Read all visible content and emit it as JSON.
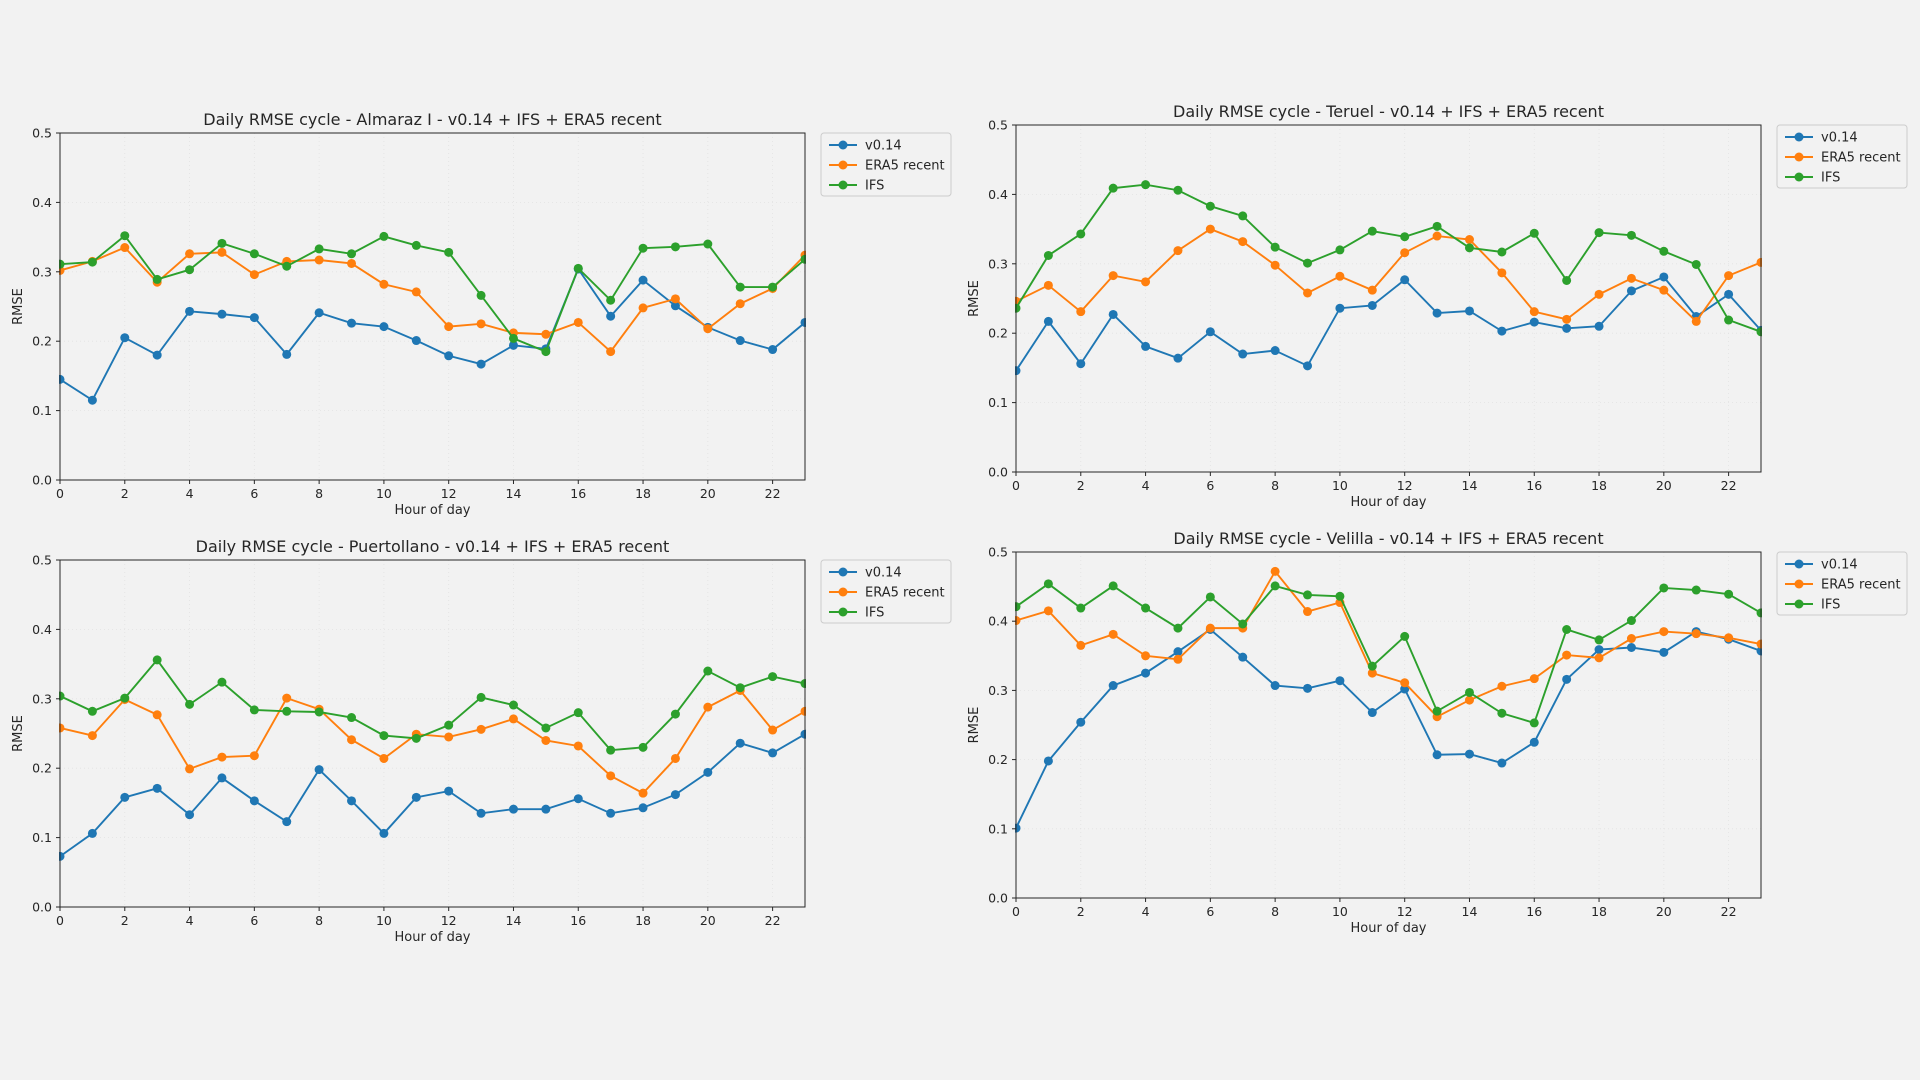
{
  "chart_data": [
    {
      "type": "line",
      "title": "Daily RMSE cycle - Almaraz I - v0.14 + IFS + ERA5 recent",
      "xlabel": "Hour of day",
      "ylabel": "RMSE",
      "xlim": [
        0,
        23
      ],
      "ylim": [
        0,
        0.5
      ],
      "xticks": [
        0,
        2,
        4,
        6,
        8,
        10,
        12,
        14,
        16,
        18,
        20,
        22
      ],
      "yticks": [
        0.0,
        0.1,
        0.2,
        0.3,
        0.4,
        0.5
      ],
      "legend_position": "outside-right-top",
      "x": [
        0,
        1,
        2,
        3,
        4,
        5,
        6,
        7,
        8,
        9,
        10,
        11,
        12,
        13,
        14,
        15,
        16,
        17,
        18,
        19,
        20,
        21,
        22,
        23
      ],
      "series": [
        {
          "name": "v0.14",
          "color": "#1f77b4",
          "values": [
            0.145,
            0.115,
            0.205,
            0.18,
            0.243,
            0.239,
            0.234,
            0.181,
            0.241,
            0.226,
            0.221,
            0.201,
            0.179,
            0.167,
            0.194,
            0.189,
            0.304,
            0.236,
            0.288,
            0.251,
            0.22,
            0.201,
            0.188,
            0.227
          ]
        },
        {
          "name": "ERA5 recent",
          "color": "#ff7f0e",
          "values": [
            0.302,
            0.315,
            0.335,
            0.285,
            0.326,
            0.328,
            0.296,
            0.315,
            0.317,
            0.312,
            0.282,
            0.271,
            0.221,
            0.225,
            0.212,
            0.21,
            0.227,
            0.185,
            0.248,
            0.261,
            0.218,
            0.254,
            0.276,
            0.324
          ]
        },
        {
          "name": "IFS",
          "color": "#2ca02c",
          "values": [
            0.311,
            0.314,
            0.352,
            0.289,
            0.303,
            0.341,
            0.326,
            0.308,
            0.333,
            0.326,
            0.351,
            0.338,
            0.328,
            0.266,
            0.204,
            0.185,
            0.305,
            0.259,
            0.334,
            0.336,
            0.34,
            0.278,
            0.278,
            0.318
          ]
        }
      ]
    },
    {
      "type": "line",
      "title": "Daily RMSE cycle - Teruel - v0.14 + IFS + ERA5 recent",
      "xlabel": "Hour of day",
      "ylabel": "RMSE",
      "xlim": [
        0,
        23
      ],
      "ylim": [
        0,
        0.5
      ],
      "xticks": [
        0,
        2,
        4,
        6,
        8,
        10,
        12,
        14,
        16,
        18,
        20,
        22
      ],
      "yticks": [
        0.0,
        0.1,
        0.2,
        0.3,
        0.4,
        0.5
      ],
      "legend_position": "outside-right-top",
      "x": [
        0,
        1,
        2,
        3,
        4,
        5,
        6,
        7,
        8,
        9,
        10,
        11,
        12,
        13,
        14,
        15,
        16,
        17,
        18,
        19,
        20,
        21,
        22,
        23
      ],
      "series": [
        {
          "name": "v0.14",
          "color": "#1f77b4",
          "values": [
            0.146,
            0.217,
            0.156,
            0.227,
            0.181,
            0.164,
            0.202,
            0.17,
            0.175,
            0.153,
            0.236,
            0.24,
            0.277,
            0.229,
            0.232,
            0.203,
            0.216,
            0.207,
            0.21,
            0.261,
            0.281,
            0.224,
            0.256,
            0.204
          ]
        },
        {
          "name": "ERA5 recent",
          "color": "#ff7f0e",
          "values": [
            0.246,
            0.269,
            0.231,
            0.283,
            0.274,
            0.319,
            0.35,
            0.332,
            0.298,
            0.258,
            0.282,
            0.262,
            0.316,
            0.34,
            0.335,
            0.287,
            0.231,
            0.22,
            0.256,
            0.279,
            0.262,
            0.217,
            0.283,
            0.302
          ]
        },
        {
          "name": "IFS",
          "color": "#2ca02c",
          "values": [
            0.236,
            0.312,
            0.343,
            0.409,
            0.414,
            0.406,
            0.383,
            0.369,
            0.324,
            0.301,
            0.32,
            0.347,
            0.339,
            0.354,
            0.323,
            0.317,
            0.344,
            0.276,
            0.345,
            0.341,
            0.318,
            0.299,
            0.219,
            0.202
          ]
        }
      ]
    },
    {
      "type": "line",
      "title": "Daily RMSE cycle - Puertollano - v0.14 + IFS + ERA5 recent",
      "xlabel": "Hour of day",
      "ylabel": "RMSE",
      "xlim": [
        0,
        23
      ],
      "ylim": [
        0,
        0.5
      ],
      "xticks": [
        0,
        2,
        4,
        6,
        8,
        10,
        12,
        14,
        16,
        18,
        20,
        22
      ],
      "yticks": [
        0.0,
        0.1,
        0.2,
        0.3,
        0.4,
        0.5
      ],
      "legend_position": "outside-right-top",
      "x": [
        0,
        1,
        2,
        3,
        4,
        5,
        6,
        7,
        8,
        9,
        10,
        11,
        12,
        13,
        14,
        15,
        16,
        17,
        18,
        19,
        20,
        21,
        22,
        23
      ],
      "series": [
        {
          "name": "v0.14",
          "color": "#1f77b4",
          "values": [
            0.073,
            0.106,
            0.158,
            0.171,
            0.133,
            0.186,
            0.153,
            0.123,
            0.198,
            0.153,
            0.106,
            0.158,
            0.167,
            0.135,
            0.141,
            0.141,
            0.156,
            0.135,
            0.143,
            0.162,
            0.194,
            0.236,
            0.222,
            0.249
          ]
        },
        {
          "name": "ERA5 recent",
          "color": "#ff7f0e",
          "values": [
            0.258,
            0.247,
            0.299,
            0.277,
            0.199,
            0.216,
            0.218,
            0.301,
            0.285,
            0.241,
            0.214,
            0.249,
            0.245,
            0.256,
            0.271,
            0.24,
            0.232,
            0.189,
            0.164,
            0.214,
            0.288,
            0.312,
            0.255,
            0.282
          ]
        },
        {
          "name": "IFS",
          "color": "#2ca02c",
          "values": [
            0.304,
            0.282,
            0.301,
            0.356,
            0.292,
            0.324,
            0.284,
            0.282,
            0.281,
            0.273,
            0.247,
            0.243,
            0.262,
            0.302,
            0.291,
            0.258,
            0.28,
            0.226,
            0.23,
            0.278,
            0.34,
            0.316,
            0.332,
            0.322
          ]
        }
      ]
    },
    {
      "type": "line",
      "title": "Daily RMSE cycle - Velilla - v0.14 + IFS + ERA5 recent",
      "xlabel": "Hour of day",
      "ylabel": "RMSE",
      "xlim": [
        0,
        23
      ],
      "ylim": [
        0,
        0.5
      ],
      "xticks": [
        0,
        2,
        4,
        6,
        8,
        10,
        12,
        14,
        16,
        18,
        20,
        22
      ],
      "yticks": [
        0.0,
        0.1,
        0.2,
        0.3,
        0.4,
        0.5
      ],
      "legend_position": "outside-right-top",
      "x": [
        0,
        1,
        2,
        3,
        4,
        5,
        6,
        7,
        8,
        9,
        10,
        11,
        12,
        13,
        14,
        15,
        16,
        17,
        18,
        19,
        20,
        21,
        22,
        23
      ],
      "series": [
        {
          "name": "v0.14",
          "color": "#1f77b4",
          "values": [
            0.101,
            0.198,
            0.254,
            0.307,
            0.325,
            0.356,
            0.388,
            0.348,
            0.307,
            0.303,
            0.314,
            0.268,
            0.302,
            0.207,
            0.208,
            0.195,
            0.225,
            0.316,
            0.359,
            0.362,
            0.355,
            0.385,
            0.374,
            0.357
          ]
        },
        {
          "name": "ERA5 recent",
          "color": "#ff7f0e",
          "values": [
            0.401,
            0.415,
            0.365,
            0.381,
            0.35,
            0.345,
            0.39,
            0.39,
            0.472,
            0.414,
            0.427,
            0.325,
            0.311,
            0.262,
            0.286,
            0.306,
            0.317,
            0.351,
            0.347,
            0.375,
            0.385,
            0.382,
            0.376,
            0.367
          ]
        },
        {
          "name": "IFS",
          "color": "#2ca02c",
          "values": [
            0.421,
            0.454,
            0.419,
            0.451,
            0.419,
            0.39,
            0.435,
            0.396,
            0.451,
            0.438,
            0.436,
            0.335,
            0.378,
            0.27,
            0.297,
            0.267,
            0.253,
            0.388,
            0.373,
            0.401,
            0.448,
            0.445,
            0.439,
            0.412
          ]
        }
      ]
    }
  ]
}
